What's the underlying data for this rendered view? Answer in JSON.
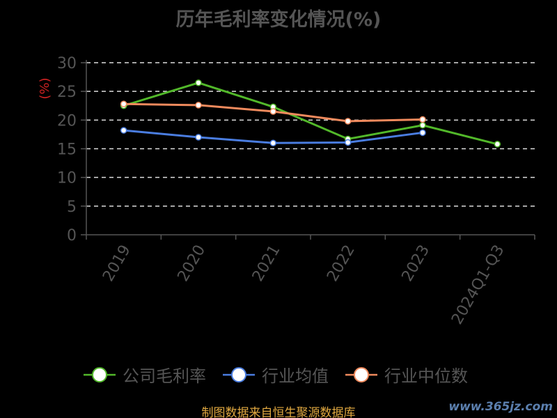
{
  "title": "历年毛利率变化情况(%)",
  "footer": "制图数据来自恒生聚源数据库",
  "watermark": "www.365jz.com",
  "chart_data": {
    "type": "line",
    "title": "历年毛利率变化情况(%)",
    "ylabel": "(%)",
    "ylim": [
      0,
      30
    ],
    "yticks": [
      0,
      5,
      10,
      15,
      20,
      25,
      30
    ],
    "grid": true,
    "legend_position": "bottom",
    "categories": [
      "2019",
      "2020",
      "2021",
      "2022",
      "2023",
      "2024Q1-Q3"
    ],
    "series": [
      {
        "name": "公司毛利率",
        "color": "#52b82a",
        "values": [
          22.5,
          26.5,
          22.3,
          16.7,
          19.1,
          15.8
        ]
      },
      {
        "name": "行业均值",
        "color": "#4a7de0",
        "values": [
          18.2,
          17.0,
          16.0,
          16.1,
          17.8,
          null
        ]
      },
      {
        "name": "行业中位数",
        "color": "#f08a5d",
        "values": [
          22.8,
          22.6,
          21.5,
          19.8,
          20.1,
          null
        ]
      }
    ]
  }
}
